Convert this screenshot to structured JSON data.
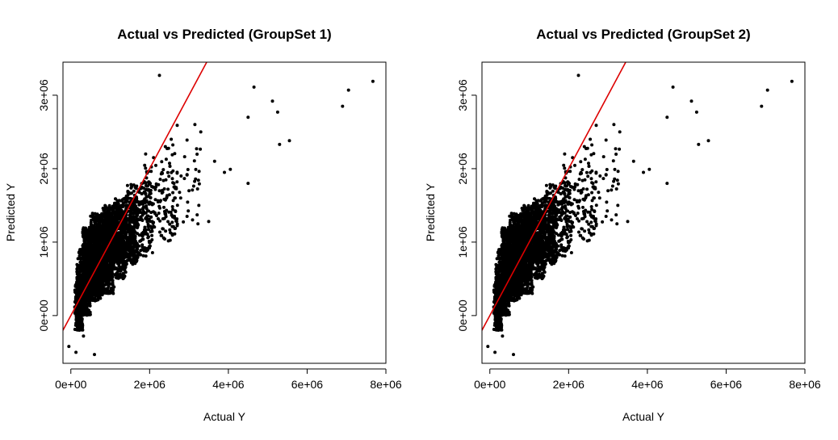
{
  "chart_data": [
    {
      "type": "scatter",
      "title": "Actual vs Predicted (GroupSet 1)",
      "xlabel": "Actual Y",
      "ylabel": "Predicted Y",
      "xlim": [
        -200000,
        8000000
      ],
      "ylim": [
        -650000,
        3450000
      ],
      "x_ticks": [
        {
          "value": 0,
          "label": "0e+00"
        },
        {
          "value": 2000000,
          "label": "2e+06"
        },
        {
          "value": 4000000,
          "label": "4e+06"
        },
        {
          "value": 6000000,
          "label": "6e+06"
        },
        {
          "value": 8000000,
          "label": "8e+06"
        }
      ],
      "y_ticks": [
        {
          "value": 0,
          "label": "0e+00"
        },
        {
          "value": 1000000,
          "label": "1e+06"
        },
        {
          "value": 2000000,
          "label": "2e+06"
        },
        {
          "value": 3000000,
          "label": "3e+06"
        }
      ],
      "reference_line": {
        "type": "y=x",
        "color": "#dd0000"
      },
      "point_color": "#000000",
      "grid": false,
      "points": [
        [
          2250000,
          3270000
        ],
        [
          4650000,
          3110000
        ],
        [
          5120000,
          2920000
        ],
        [
          5250000,
          2770000
        ],
        [
          4500000,
          2700000
        ],
        [
          5300000,
          2330000
        ],
        [
          5550000,
          2380000
        ],
        [
          6900000,
          2850000
        ],
        [
          7050000,
          3070000
        ],
        [
          7670000,
          3190000
        ],
        [
          3300000,
          2500000
        ],
        [
          3150000,
          2600000
        ],
        [
          3650000,
          2100000
        ],
        [
          3900000,
          1950000
        ],
        [
          4050000,
          1990000
        ],
        [
          4500000,
          1800000
        ],
        [
          3500000,
          1280000
        ],
        [
          2700000,
          2590000
        ],
        [
          2550000,
          2400000
        ],
        [
          2400000,
          2300000
        ],
        [
          -50000,
          -420000
        ],
        [
          130000,
          -500000
        ],
        [
          600000,
          -530000
        ],
        [
          320000,
          -280000
        ],
        [
          220000,
          -150000
        ],
        [
          1900000,
          2200000
        ],
        [
          2100000,
          2150000
        ],
        [
          2250000,
          1700000
        ],
        [
          2800000,
          1900000
        ],
        [
          3000000,
          1700000
        ],
        [
          3250000,
          1500000
        ],
        [
          2950000,
          1350000
        ],
        [
          2650000,
          1600000
        ]
      ],
      "clusters": [
        {
          "x": [
            100000,
            300000
          ],
          "y": [
            -200000,
            500000
          ],
          "n": 220
        },
        {
          "x": [
            150000,
            500000
          ],
          "y": [
            0,
            900000
          ],
          "n": 420
        },
        {
          "x": [
            300000,
            800000
          ],
          "y": [
            200000,
            1200000
          ],
          "n": 700
        },
        {
          "x": [
            500000,
            1100000
          ],
          "y": [
            300000,
            1400000
          ],
          "n": 750
        },
        {
          "x": [
            800000,
            1400000
          ],
          "y": [
            500000,
            1500000
          ],
          "n": 600
        },
        {
          "x": [
            1100000,
            1700000
          ],
          "y": [
            700000,
            1600000
          ],
          "n": 420
        },
        {
          "x": [
            1400000,
            2100000
          ],
          "y": [
            800000,
            1800000
          ],
          "n": 250
        },
        {
          "x": [
            1800000,
            2700000
          ],
          "y": [
            1000000,
            2100000
          ],
          "n": 130
        },
        {
          "x": [
            2300000,
            3300000
          ],
          "y": [
            1200000,
            2400000
          ],
          "n": 55
        }
      ]
    },
    {
      "type": "scatter",
      "title": "Actual vs Predicted (GroupSet 2)",
      "xlabel": "Actual Y",
      "ylabel": "Predicted Y",
      "xlim": [
        -200000,
        8000000
      ],
      "ylim": [
        -650000,
        3450000
      ],
      "x_ticks": [
        {
          "value": 0,
          "label": "0e+00"
        },
        {
          "value": 2000000,
          "label": "2e+06"
        },
        {
          "value": 4000000,
          "label": "4e+06"
        },
        {
          "value": 6000000,
          "label": "6e+06"
        },
        {
          "value": 8000000,
          "label": "8e+06"
        }
      ],
      "y_ticks": [
        {
          "value": 0,
          "label": "0e+00"
        },
        {
          "value": 1000000,
          "label": "1e+06"
        },
        {
          "value": 2000000,
          "label": "2e+06"
        },
        {
          "value": 3000000,
          "label": "3e+06"
        }
      ],
      "reference_line": {
        "type": "y=x",
        "color": "#dd0000"
      },
      "point_color": "#000000",
      "grid": false,
      "points": [
        [
          2250000,
          3270000
        ],
        [
          4650000,
          3110000
        ],
        [
          5120000,
          2920000
        ],
        [
          5250000,
          2770000
        ],
        [
          4500000,
          2700000
        ],
        [
          5300000,
          2330000
        ],
        [
          5550000,
          2380000
        ],
        [
          6900000,
          2850000
        ],
        [
          7050000,
          3070000
        ],
        [
          7670000,
          3190000
        ],
        [
          3300000,
          2500000
        ],
        [
          3150000,
          2600000
        ],
        [
          3650000,
          2100000
        ],
        [
          3900000,
          1950000
        ],
        [
          4050000,
          1990000
        ],
        [
          4500000,
          1800000
        ],
        [
          3500000,
          1280000
        ],
        [
          2700000,
          2590000
        ],
        [
          2550000,
          2400000
        ],
        [
          2400000,
          2300000
        ],
        [
          -50000,
          -420000
        ],
        [
          130000,
          -500000
        ],
        [
          600000,
          -530000
        ],
        [
          320000,
          -280000
        ],
        [
          220000,
          -150000
        ],
        [
          1900000,
          2200000
        ],
        [
          2100000,
          2150000
        ],
        [
          2250000,
          1700000
        ],
        [
          2800000,
          1900000
        ],
        [
          3000000,
          1700000
        ],
        [
          3250000,
          1500000
        ],
        [
          2950000,
          1350000
        ],
        [
          2650000,
          1600000
        ]
      ],
      "clusters": [
        {
          "x": [
            100000,
            300000
          ],
          "y": [
            -200000,
            500000
          ],
          "n": 220
        },
        {
          "x": [
            150000,
            500000
          ],
          "y": [
            0,
            900000
          ],
          "n": 420
        },
        {
          "x": [
            300000,
            800000
          ],
          "y": [
            200000,
            1200000
          ],
          "n": 700
        },
        {
          "x": [
            500000,
            1100000
          ],
          "y": [
            300000,
            1400000
          ],
          "n": 750
        },
        {
          "x": [
            800000,
            1400000
          ],
          "y": [
            500000,
            1500000
          ],
          "n": 600
        },
        {
          "x": [
            1100000,
            1700000
          ],
          "y": [
            700000,
            1600000
          ],
          "n": 420
        },
        {
          "x": [
            1400000,
            2100000
          ],
          "y": [
            800000,
            1800000
          ],
          "n": 250
        },
        {
          "x": [
            1800000,
            2700000
          ],
          "y": [
            1000000,
            2100000
          ],
          "n": 130
        },
        {
          "x": [
            2300000,
            3300000
          ],
          "y": [
            1200000,
            2400000
          ],
          "n": 55
        }
      ]
    }
  ]
}
